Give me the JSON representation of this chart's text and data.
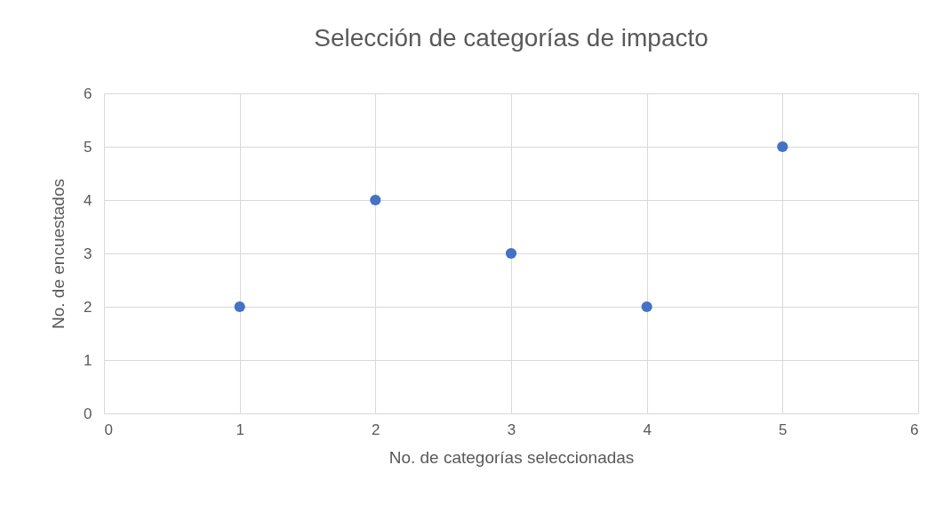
{
  "chart_data": {
    "type": "scatter",
    "title": "Selección de categorías de impacto",
    "xlabel": "No. de categorías seleccionadas",
    "ylabel": "No. de encuestados",
    "x": [
      1,
      2,
      3,
      4,
      5
    ],
    "values": [
      2,
      4,
      3,
      2,
      5
    ],
    "color": "#4472c4",
    "xlim": [
      0,
      6
    ],
    "ylim": [
      0,
      6
    ],
    "xticks": [
      0,
      1,
      2,
      3,
      4,
      5,
      6
    ],
    "yticks": [
      0,
      1,
      2,
      3,
      4,
      5,
      6
    ],
    "grid": true,
    "marker": "circle"
  }
}
